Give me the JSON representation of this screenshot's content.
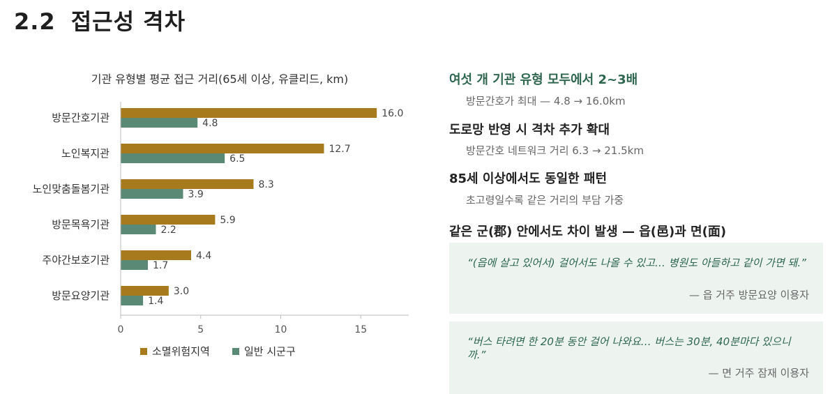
{
  "page": {
    "section_number": "2.2",
    "section_title": "접근성 격차"
  },
  "chart_data": {
    "type": "bar",
    "orientation": "horizontal",
    "title": "기관 유형별 평균 접근 거리(65세 이상, 유클리드, km)",
    "categories": [
      "방문간호기관",
      "노인복지관",
      "노인맞춤돌봄기관",
      "방문목욕기관",
      "주야간보호기관",
      "방문요양기관"
    ],
    "series": [
      {
        "name": "소멸위험지역",
        "color": "#a87a1e",
        "values": [
          16.0,
          12.7,
          8.3,
          5.9,
          4.4,
          3.0
        ]
      },
      {
        "name": "일반 시군구",
        "color": "#5a8a76",
        "values": [
          4.8,
          6.5,
          3.9,
          2.2,
          1.7,
          1.4
        ]
      }
    ],
    "xlim": [
      0,
      18
    ],
    "xticks": [
      0,
      5,
      10,
      15
    ],
    "legend_position": "bottom",
    "grid": false
  },
  "findings": [
    {
      "heading": "여섯 개 기관 유형 모두에서 2~3배",
      "detail": "방문간호가 최대 — 4.8 → 16.0km",
      "accent": true
    },
    {
      "heading": "도로망 반영 시 격차 추가 확대",
      "detail": "방문간호 네트워크 거리 6.3 → 21.5km",
      "accent": false
    },
    {
      "heading": "85세 이상에서도 동일한 패턴",
      "detail": "초고령일수록 같은 거리의 부담 가중",
      "accent": false
    },
    {
      "heading": "같은 군(郡) 안에서도 차이 발생 — 읍(邑)과 면(面)",
      "detail": "",
      "accent": false
    }
  ],
  "quotes": [
    {
      "text": "“(읍에 살고 있어서) 걸어서도 나올 수 있고… 병원도 아들하고 같이 가면 돼.”",
      "source": "— 읍 거주 방문요양 이용자"
    },
    {
      "text": "“버스 타려면 한 20분 동안 걸어 나와요… 버스는 30분, 40분마다 있으니까.”",
      "source": "— 면 거주 잠재 이용자"
    }
  ]
}
